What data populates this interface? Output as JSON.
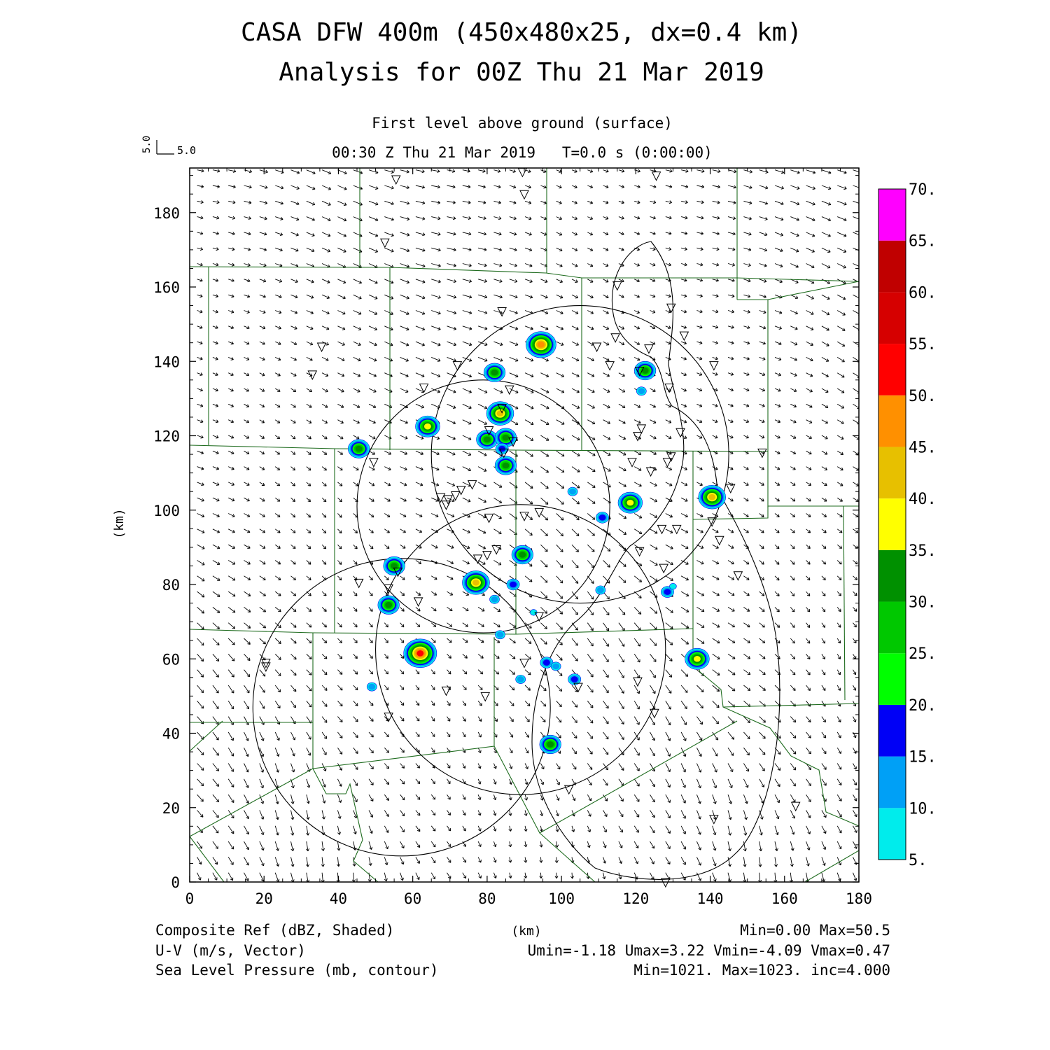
{
  "header": {
    "title_line1": "CASA DFW 400m (450x480x25, dx=0.4 km)",
    "title_line2": "Analysis for 00Z Thu 21 Mar 2019",
    "level": "First level above ground (surface)",
    "time_line": "00:30 Z Thu 21 Mar 2019   T=0.0 s (0:00:00)",
    "vector_ref_u": "5.0",
    "vector_ref_v": "5.0"
  },
  "footer": {
    "field1_label": "Composite Ref (dBZ, Shaded)",
    "field1_stats": "Min=0.00 Max=50.5",
    "field2_label": "U-V (m/s, Vector)",
    "field2_stats": "Umin=-1.18 Umax=3.22 Vmin=-4.09 Vmax=0.47",
    "field3_label": "Sea Level Pressure (mb, contour)",
    "field3_stats": "Min=1021. Max=1023. inc=4.000",
    "xunit": "(km)"
  },
  "colors": {
    "county_lines": "#1e6b1e",
    "colorbar": [
      "#00ecec",
      "#00a0f6",
      "#0000f6",
      "#00ff00",
      "#00c800",
      "#009000",
      "#ffff00",
      "#e7c000",
      "#ff9000",
      "#ff0000",
      "#d60000",
      "#c00000",
      "#ff00ff"
    ]
  },
  "chart_data": {
    "type": "heatmap",
    "xlabel": "(km)",
    "ylabel": "(km)",
    "xlim": [
      0,
      180
    ],
    "ylim": [
      0,
      192
    ],
    "xticks": [
      0,
      20,
      40,
      60,
      80,
      100,
      120,
      140,
      160,
      180
    ],
    "yticks": [
      0,
      20,
      40,
      60,
      80,
      100,
      120,
      140,
      160,
      180
    ],
    "xtick_labels": [
      "0",
      "20",
      "40",
      "60",
      "80",
      "100",
      "120",
      "140",
      "160",
      "180"
    ],
    "ytick_labels": [
      "0",
      "20",
      "40",
      "60",
      "80",
      "100",
      "120",
      "140",
      "160",
      "180"
    ],
    "colorbar": {
      "levels": [
        5,
        10,
        15,
        20,
        25,
        30,
        35,
        40,
        45,
        50,
        55,
        60,
        65,
        70
      ],
      "labels": [
        "5.",
        "10.",
        "15.",
        "20.",
        "25.",
        "30.",
        "35.",
        "40.",
        "45.",
        "50.",
        "55.",
        "60.",
        "65.",
        "70."
      ]
    },
    "reflectivity_cells": [
      {
        "x": 94.5,
        "y": 144.5,
        "dbz": 45
      },
      {
        "x": 82,
        "y": 137,
        "dbz": 30
      },
      {
        "x": 122.5,
        "y": 137.5,
        "dbz": 30
      },
      {
        "x": 121.5,
        "y": 132,
        "dbz": 10
      },
      {
        "x": 83.5,
        "y": 126,
        "dbz": 40
      },
      {
        "x": 64,
        "y": 122.5,
        "dbz": 35
      },
      {
        "x": 80,
        "y": 119,
        "dbz": 30
      },
      {
        "x": 85,
        "y": 119.5,
        "dbz": 30
      },
      {
        "x": 84,
        "y": 116.5,
        "dbz": 15
      },
      {
        "x": 45.5,
        "y": 116.5,
        "dbz": 30
      },
      {
        "x": 85,
        "y": 112,
        "dbz": 30
      },
      {
        "x": 103,
        "y": 105,
        "dbz": 10
      },
      {
        "x": 140.5,
        "y": 103.5,
        "dbz": 40
      },
      {
        "x": 118.5,
        "y": 102,
        "dbz": 35
      },
      {
        "x": 111,
        "y": 98,
        "dbz": 15
      },
      {
        "x": 89.5,
        "y": 88,
        "dbz": 30
      },
      {
        "x": 55,
        "y": 85,
        "dbz": 30
      },
      {
        "x": 77,
        "y": 80.5,
        "dbz": 40
      },
      {
        "x": 87,
        "y": 80,
        "dbz": 15
      },
      {
        "x": 110.5,
        "y": 78.5,
        "dbz": 10
      },
      {
        "x": 128.5,
        "y": 78,
        "dbz": 15
      },
      {
        "x": 130,
        "y": 79.5,
        "dbz": 5
      },
      {
        "x": 82,
        "y": 76,
        "dbz": 10
      },
      {
        "x": 53.5,
        "y": 74.5,
        "dbz": 30
      },
      {
        "x": 92.5,
        "y": 72.5,
        "dbz": 5
      },
      {
        "x": 83.5,
        "y": 66.5,
        "dbz": 10
      },
      {
        "x": 62,
        "y": 61.5,
        "dbz": 50
      },
      {
        "x": 136.5,
        "y": 60,
        "dbz": 35
      },
      {
        "x": 96,
        "y": 59,
        "dbz": 15
      },
      {
        "x": 98.5,
        "y": 58,
        "dbz": 10
      },
      {
        "x": 89,
        "y": 54.5,
        "dbz": 10
      },
      {
        "x": 103.5,
        "y": 54.5,
        "dbz": 15
      },
      {
        "x": 49,
        "y": 52.5,
        "dbz": 10
      },
      {
        "x": 97,
        "y": 37,
        "dbz": 30
      }
    ],
    "radar_sites": [
      [
        89.5,
        191
      ],
      [
        55.5,
        189
      ],
      [
        125.5,
        190
      ],
      [
        90,
        185
      ],
      [
        52.5,
        172
      ],
      [
        115,
        160.5
      ],
      [
        84,
        153.5
      ],
      [
        129.5,
        154.5
      ],
      [
        35.5,
        144
      ],
      [
        114.5,
        146.5
      ],
      [
        133,
        147
      ],
      [
        109.5,
        144
      ],
      [
        123.5,
        143.5
      ],
      [
        33,
        136.5
      ],
      [
        72,
        139
      ],
      [
        113,
        139
      ],
      [
        141,
        139
      ],
      [
        63,
        133
      ],
      [
        86,
        132.5
      ],
      [
        121,
        137.5
      ],
      [
        129,
        133
      ],
      [
        84,
        127.5
      ],
      [
        121.5,
        122
      ],
      [
        80.5,
        121.5
      ],
      [
        132,
        121
      ],
      [
        120.5,
        120
      ],
      [
        87,
        118.5
      ],
      [
        84.5,
        115.5
      ],
      [
        154,
        115.5
      ],
      [
        129.5,
        114.5
      ],
      [
        49.5,
        113
      ],
      [
        119,
        113
      ],
      [
        128.5,
        113
      ],
      [
        145.5,
        106
      ],
      [
        73,
        105.5
      ],
      [
        76,
        107
      ],
      [
        69.5,
        103
      ],
      [
        71.5,
        104
      ],
      [
        67.5,
        103.5
      ],
      [
        124,
        110.5
      ],
      [
        69,
        101.5
      ],
      [
        80.5,
        98
      ],
      [
        90,
        98.5
      ],
      [
        94,
        99.5
      ],
      [
        140.5,
        97
      ],
      [
        127,
        95
      ],
      [
        131,
        95
      ],
      [
        142.5,
        92
      ],
      [
        121,
        89
      ],
      [
        82.5,
        89.5
      ],
      [
        80,
        88
      ],
      [
        77.5,
        87
      ],
      [
        147.5,
        82.5
      ],
      [
        45.5,
        80.5
      ],
      [
        56,
        83.5
      ],
      [
        53.5,
        79
      ],
      [
        127.5,
        84.5
      ],
      [
        61.5,
        75.5
      ],
      [
        94,
        71.5
      ],
      [
        20.5,
        59
      ],
      [
        20.5,
        58
      ],
      [
        90,
        59
      ],
      [
        120.5,
        54
      ],
      [
        104.5,
        52.5
      ],
      [
        69,
        51.5
      ],
      [
        79.5,
        50
      ],
      [
        53.5,
        44.5
      ],
      [
        125,
        45.5
      ],
      [
        102,
        25
      ],
      [
        141,
        17
      ],
      [
        163,
        20.5
      ],
      [
        128,
        0
      ]
    ],
    "range_circles": [
      {
        "cx": 105,
        "cy": 115,
        "r": 40
      },
      {
        "cx": 79,
        "cy": 101,
        "r": 34
      },
      {
        "cx": 89,
        "cy": 62.5,
        "r": 39
      },
      {
        "cx": 57,
        "cy": 47,
        "r": 40
      }
    ],
    "wind_field_ranges": {
      "umin": -1.18,
      "umax": 3.22,
      "vmin": -4.09,
      "vmax": 0.47
    }
  }
}
